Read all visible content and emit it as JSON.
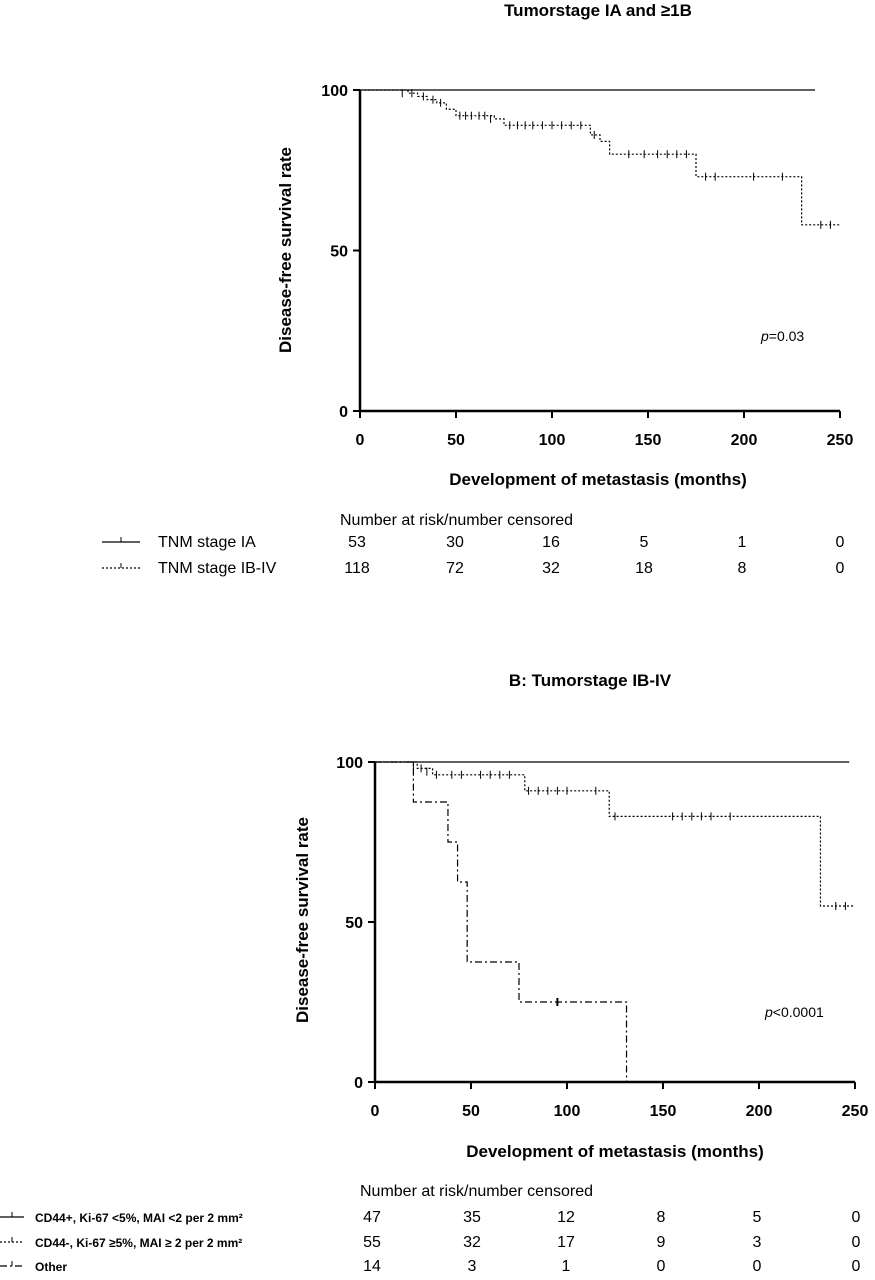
{
  "chart_data": [
    {
      "type": "line",
      "title": "Tumorstage IA and ≥1B",
      "xlabel": "Development of metastasis (months)",
      "ylabel": "Disease-free survival rate",
      "xlim": [
        0,
        250
      ],
      "ylim": [
        0,
        100
      ],
      "xticks": [
        "0",
        "50",
        "100",
        "150",
        "200",
        "250"
      ],
      "yticks": [
        "0",
        "50",
        "100"
      ],
      "annotation": {
        "p_italic": "p",
        "p_rest": "=0.03"
      },
      "series": [
        {
          "name": "TNM stage IA",
          "style": "solid",
          "steps": [
            [
              0,
              100
            ],
            [
              237,
              100
            ]
          ],
          "censored": []
        },
        {
          "name": "TNM stage IB-IV",
          "style": "dotted",
          "steps": [
            [
              0,
              100
            ],
            [
              25,
              99
            ],
            [
              30,
              98
            ],
            [
              35,
              97
            ],
            [
              40,
              96
            ],
            [
              45,
              94
            ],
            [
              50,
              92
            ],
            [
              70,
              91
            ],
            [
              75,
              89
            ],
            [
              120,
              86
            ],
            [
              125,
              84
            ],
            [
              130,
              80
            ],
            [
              175,
              73
            ],
            [
              230,
              58
            ],
            [
              250,
              58
            ]
          ],
          "censored": [
            [
              22,
              99
            ],
            [
              27,
              99
            ],
            [
              33,
              98
            ],
            [
              38,
              97
            ],
            [
              42,
              96
            ],
            [
              52,
              92
            ],
            [
              55,
              92
            ],
            [
              58,
              92
            ],
            [
              62,
              92
            ],
            [
              65,
              92
            ],
            [
              68,
              91
            ],
            [
              78,
              89
            ],
            [
              82,
              89
            ],
            [
              86,
              89
            ],
            [
              90,
              89
            ],
            [
              95,
              89
            ],
            [
              100,
              89
            ],
            [
              105,
              89
            ],
            [
              110,
              89
            ],
            [
              115,
              89
            ],
            [
              122,
              86
            ],
            [
              140,
              80
            ],
            [
              148,
              80
            ],
            [
              155,
              80
            ],
            [
              160,
              80
            ],
            [
              165,
              80
            ],
            [
              170,
              80
            ],
            [
              180,
              73
            ],
            [
              185,
              73
            ],
            [
              205,
              73
            ],
            [
              220,
              73
            ],
            [
              240,
              58
            ],
            [
              245,
              58
            ]
          ]
        }
      ],
      "risk_table": {
        "header": "Number at risk/number censored",
        "rows": [
          {
            "label": "TNM stage IA",
            "style": "solid",
            "values": [
              "53",
              "30",
              "16",
              "5",
              "1",
              "0"
            ]
          },
          {
            "label": "TNM stage IB-IV",
            "style": "dotted",
            "values": [
              "118",
              "72",
              "32",
              "18",
              "8",
              "0"
            ]
          }
        ]
      }
    },
    {
      "type": "line",
      "title": "B: Tumorstage IB-IV",
      "xlabel": "Development of metastasis (months)",
      "ylabel": "Disease-free survival rate",
      "xlim": [
        0,
        250
      ],
      "ylim": [
        0,
        100
      ],
      "xticks": [
        "0",
        "50",
        "100",
        "150",
        "200",
        "250"
      ],
      "yticks": [
        "0",
        "50",
        "100"
      ],
      "annotation": {
        "p_italic": "p",
        "p_rest": "<0.0001"
      },
      "series": [
        {
          "name": "CD44+, Ki-67 <5%, MAI <2 per 2 mm²",
          "style": "solid",
          "steps": [
            [
              0,
              100
            ],
            [
              247,
              100
            ]
          ],
          "censored": []
        },
        {
          "name": "CD44-, Ki-67 ≥5%, MAI ≥ 2 per 2 mm²",
          "style": "dotted",
          "steps": [
            [
              0,
              100
            ],
            [
              22,
              98
            ],
            [
              30,
              96
            ],
            [
              78,
              91
            ],
            [
              122,
              83
            ],
            [
              232,
              55
            ],
            [
              250,
              55
            ]
          ],
          "censored": [
            [
              20,
              99
            ],
            [
              24,
              98
            ],
            [
              27,
              97
            ],
            [
              32,
              96
            ],
            [
              40,
              96
            ],
            [
              45,
              96
            ],
            [
              55,
              96
            ],
            [
              60,
              96
            ],
            [
              65,
              96
            ],
            [
              70,
              96
            ],
            [
              80,
              91
            ],
            [
              85,
              91
            ],
            [
              90,
              91
            ],
            [
              95,
              91
            ],
            [
              100,
              91
            ],
            [
              115,
              91
            ],
            [
              125,
              83
            ],
            [
              155,
              83
            ],
            [
              160,
              83
            ],
            [
              165,
              83
            ],
            [
              170,
              83
            ],
            [
              175,
              83
            ],
            [
              185,
              83
            ],
            [
              240,
              55
            ],
            [
              245,
              55
            ]
          ]
        },
        {
          "name": "Other",
          "style": "dashdot",
          "steps": [
            [
              0,
              100
            ],
            [
              20,
              87.5
            ],
            [
              38,
              75
            ],
            [
              43,
              62.5
            ],
            [
              48,
              37.5
            ],
            [
              75,
              25
            ],
            [
              131,
              0
            ]
          ],
          "censored": [
            [
              95,
              25
            ]
          ]
        }
      ],
      "risk_table": {
        "header": "Number at risk/number censored",
        "rows": [
          {
            "label": "CD44+, Ki-67 <5%, MAI <2 per 2 mm²",
            "style": "solid",
            "values": [
              "47",
              "35",
              "12",
              "8",
              "5",
              "0"
            ]
          },
          {
            "label": "CD44-, Ki-67 ≥5%, MAI ≥ 2 per 2 mm²",
            "style": "dotted",
            "values": [
              "55",
              "32",
              "17",
              "9",
              "3",
              "0"
            ]
          },
          {
            "label": "Other",
            "style": "dashdot",
            "values": [
              "14",
              "3",
              "1",
              "0",
              "0",
              "0"
            ]
          }
        ]
      }
    }
  ]
}
